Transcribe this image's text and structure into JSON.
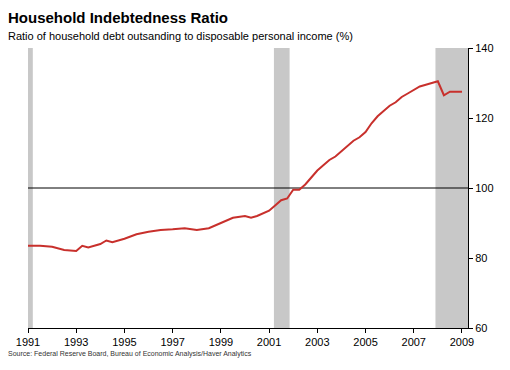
{
  "chart_data": {
    "type": "line",
    "title": "Household Indebtedness Ratio",
    "subtitle": "Ratio of household debt outsanding to disposable personal income (%)",
    "source": "Source: Federal Reserve Board, Bureau of Economic Analysis/Haver Analytics",
    "x": [
      1991.0,
      1991.5,
      1992.0,
      1992.5,
      1993.0,
      1993.25,
      1993.5,
      1994.0,
      1994.25,
      1994.5,
      1995.0,
      1995.5,
      1996.0,
      1996.5,
      1997.0,
      1997.5,
      1998.0,
      1998.5,
      1999.0,
      1999.5,
      2000.0,
      2000.25,
      2000.5,
      2001.0,
      2001.25,
      2001.5,
      2001.75,
      2002.0,
      2002.25,
      2002.5,
      2002.75,
      2003.0,
      2003.25,
      2003.5,
      2003.75,
      2004.0,
      2004.25,
      2004.5,
      2004.75,
      2005.0,
      2005.25,
      2005.5,
      2005.75,
      2006.0,
      2006.25,
      2006.5,
      2006.75,
      2007.0,
      2007.25,
      2007.5,
      2007.75,
      2008.0,
      2008.25,
      2008.5,
      2008.75,
      2009.0
    ],
    "values": [
      83.5,
      83.5,
      83.2,
      82.3,
      82.0,
      83.5,
      83.0,
      84.0,
      85.0,
      84.5,
      85.5,
      86.8,
      87.5,
      88.0,
      88.2,
      88.5,
      88.0,
      88.5,
      90.0,
      91.5,
      92.0,
      91.5,
      92.0,
      93.5,
      95.0,
      96.5,
      97.0,
      99.5,
      99.5,
      101.0,
      103.0,
      105.0,
      106.5,
      108.0,
      109.0,
      110.5,
      112.0,
      113.5,
      114.5,
      116.0,
      118.5,
      120.5,
      122.0,
      123.5,
      124.5,
      126.0,
      127.0,
      128.0,
      129.0,
      129.5,
      130.0,
      130.5,
      126.5,
      127.5,
      127.5,
      127.5
    ],
    "color": "#c8302c",
    "xlim": [
      1991,
      2009.25
    ],
    "xticks": [
      1991,
      1993,
      1995,
      1997,
      1999,
      2001,
      2003,
      2005,
      2007,
      2009
    ],
    "ylim": [
      60,
      140
    ],
    "yticks": [
      60,
      80,
      100,
      120,
      140
    ],
    "grid": false,
    "recessions": [
      [
        1991.0,
        1991.2
      ],
      [
        2001.2,
        2001.85
      ],
      [
        2007.9,
        2009.25
      ]
    ],
    "reference_line": 100
  }
}
